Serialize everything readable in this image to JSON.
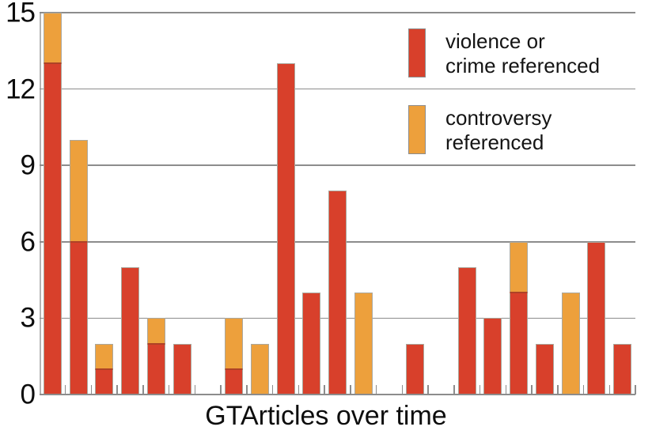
{
  "chart_data": {
    "type": "bar",
    "stacked": true,
    "title": "",
    "xlabel": "GTArticles over time",
    "ylabel": "",
    "ylim": [
      0,
      15
    ],
    "yticks": [
      0,
      3,
      6,
      9,
      12,
      15
    ],
    "y_tick_labels": [
      "0",
      "3",
      "6",
      "9",
      "12",
      "15"
    ],
    "grid": true,
    "legend_position": "upper-right-inside",
    "n_slots": 23,
    "x_tick_labels": [],
    "series": [
      {
        "name": "violence or crime referenced",
        "color": "#d8402b",
        "values": [
          13,
          6,
          1,
          5,
          2,
          2,
          0,
          1,
          0,
          13,
          4,
          8,
          0,
          0,
          2,
          0,
          5,
          3,
          4,
          2,
          0,
          6,
          2
        ]
      },
      {
        "name": "controversy referenced",
        "color": "#eda03c",
        "values": [
          2,
          4,
          1,
          0,
          1,
          0,
          0,
          2,
          2,
          0,
          0,
          0,
          4,
          0,
          0,
          0,
          0,
          0,
          2,
          0,
          4,
          0,
          0
        ]
      }
    ],
    "totals": [
      15,
      10,
      2,
      5,
      3,
      2,
      0,
      3,
      2,
      13,
      4,
      8,
      4,
      0,
      2,
      0,
      5,
      3,
      6,
      2,
      4,
      6,
      2
    ]
  },
  "legend": {
    "items": [
      {
        "lines": [
          "violence or",
          "crime referenced"
        ],
        "color": "#d8402b"
      },
      {
        "lines": [
          "controversy",
          "referenced"
        ],
        "color": "#eda03c"
      }
    ]
  },
  "axes": {
    "x_label": "GTArticles over time"
  },
  "colors": {
    "red": "#d8402b",
    "orange": "#eda03c",
    "gridline": "#8c8c8c",
    "axis_line": "#b3b3b3",
    "bar_border": "#aba89e",
    "segment_divider": "#ae4226",
    "text": "#0d0d0d",
    "background": "#ffffff"
  }
}
